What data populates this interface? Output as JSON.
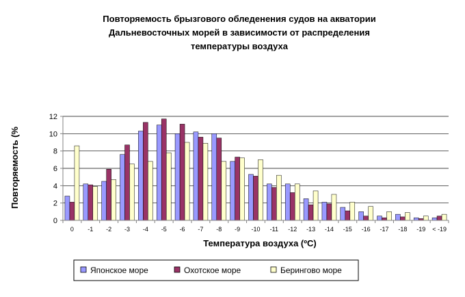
{
  "chart_data": {
    "type": "bar",
    "title_lines": [
      "Повторяемость брызгового обледенения судов на акватории",
      "Дальневосточных морей в зависимости от распределения",
      "температуры воздуха"
    ],
    "xlabel": "Температура воздуха (ºС)",
    "ylabel": "Повторяемость (%",
    "ylim": [
      0,
      12
    ],
    "yticks": [
      0,
      2,
      4,
      6,
      8,
      10,
      12
    ],
    "grid": true,
    "legend_position": "bottom",
    "categories": [
      "0",
      "-1",
      "-2",
      "-3",
      "-4",
      "-5",
      "-6",
      "-7",
      "-8",
      "-9",
      "-10",
      "-11",
      "-12",
      "-13",
      "-14",
      "-15",
      "-16",
      "-17",
      "-18",
      "-19",
      "< -19"
    ],
    "series": [
      {
        "name": "Японское море",
        "color": "#9999ff",
        "values": [
          2.8,
          4.2,
          4.5,
          7.6,
          10.3,
          11.0,
          10.0,
          10.2,
          10.0,
          6.8,
          5.3,
          4.2,
          4.2,
          2.5,
          2.1,
          1.5,
          1.0,
          0.5,
          0.7,
          0.3,
          0.3
        ]
      },
      {
        "name": "Охотское море",
        "color": "#993366",
        "values": [
          2.1,
          4.1,
          5.9,
          8.7,
          11.3,
          11.7,
          11.1,
          9.6,
          9.5,
          7.3,
          5.1,
          3.8,
          3.2,
          1.8,
          1.9,
          1.1,
          0.5,
          0.3,
          0.4,
          0.2,
          0.5
        ]
      },
      {
        "name": "Берингово море",
        "color": "#ffffcc",
        "values": [
          8.6,
          3.9,
          4.7,
          6.5,
          6.8,
          7.8,
          9.0,
          8.9,
          6.8,
          7.2,
          7.0,
          5.2,
          4.2,
          3.4,
          3.0,
          2.1,
          1.6,
          1.0,
          0.9,
          0.5,
          0.7
        ]
      }
    ]
  }
}
